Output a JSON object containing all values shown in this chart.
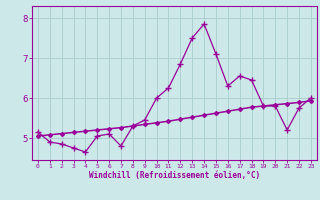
{
  "xlabel": "Windchill (Refroidissement éolien,°C)",
  "x_values": [
    0,
    1,
    2,
    3,
    4,
    5,
    6,
    7,
    8,
    9,
    10,
    11,
    12,
    13,
    14,
    15,
    16,
    17,
    18,
    19,
    20,
    21,
    22,
    23
  ],
  "y_jagged": [
    5.15,
    4.9,
    4.85,
    4.75,
    4.65,
    5.05,
    5.1,
    4.8,
    5.3,
    5.45,
    6.0,
    6.25,
    6.85,
    7.5,
    7.85,
    7.1,
    6.3,
    6.55,
    6.45,
    5.8,
    5.8,
    5.2,
    5.75,
    6.0
  ],
  "y_trend": [
    5.05,
    5.08,
    5.11,
    5.14,
    5.17,
    5.2,
    5.23,
    5.26,
    5.3,
    5.34,
    5.38,
    5.42,
    5.47,
    5.52,
    5.57,
    5.62,
    5.67,
    5.72,
    5.77,
    5.8,
    5.83,
    5.86,
    5.89,
    5.93
  ],
  "line_color": "#990099",
  "bg_color": "#cce8e8",
  "grid_color": "#aacccc",
  "ylim_min": 4.45,
  "ylim_max": 8.3,
  "xlim_min": -0.5,
  "xlim_max": 23.5,
  "ytick_values": [
    5,
    6,
    7,
    8
  ],
  "xtick_values": [
    0,
    1,
    2,
    3,
    4,
    5,
    6,
    7,
    8,
    9,
    10,
    11,
    12,
    13,
    14,
    15,
    16,
    17,
    18,
    19,
    20,
    21,
    22,
    23
  ]
}
